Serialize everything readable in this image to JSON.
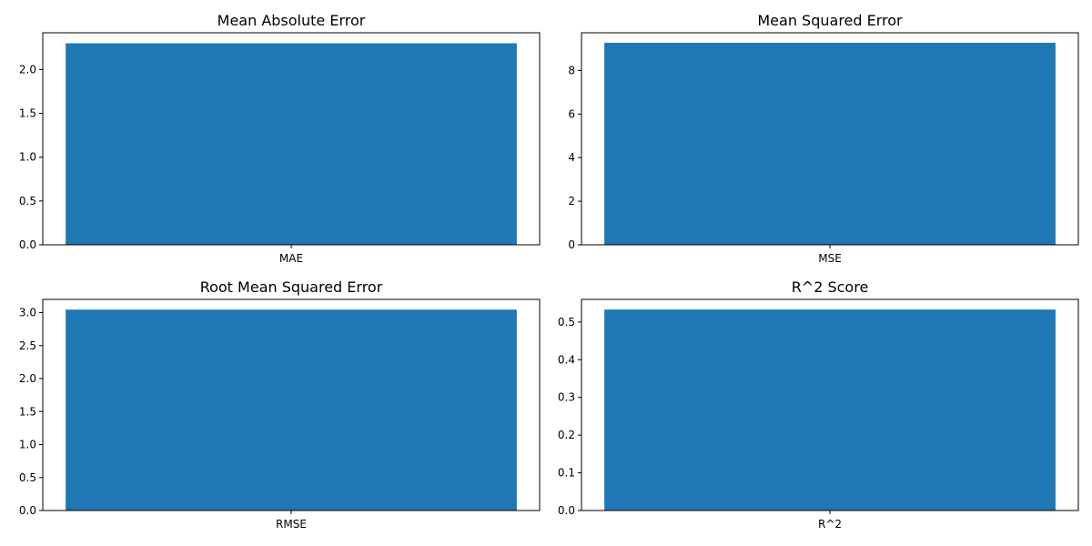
{
  "chart_data": [
    {
      "type": "bar",
      "title": "Mean Absolute Error",
      "categories": [
        "MAE"
      ],
      "values": [
        2.3
      ],
      "ylim": [
        0,
        2.42
      ],
      "yticks": [
        "0.0",
        "0.5",
        "1.0",
        "1.5",
        "2.0"
      ],
      "grid": false,
      "bar_color": "#1f77b4"
    },
    {
      "type": "bar",
      "title": "Mean Squared Error",
      "categories": [
        "MSE"
      ],
      "values": [
        9.27
      ],
      "ylim": [
        0,
        9.73
      ],
      "yticks": [
        "0",
        "2",
        "4",
        "6",
        "8"
      ],
      "grid": false,
      "bar_color": "#1f77b4"
    },
    {
      "type": "bar",
      "title": "Root Mean Squared Error",
      "categories": [
        "RMSE"
      ],
      "values": [
        3.045
      ],
      "ylim": [
        0,
        3.2
      ],
      "yticks": [
        "0.0",
        "0.5",
        "1.0",
        "1.5",
        "2.0",
        "2.5",
        "3.0"
      ],
      "grid": false,
      "bar_color": "#1f77b4"
    },
    {
      "type": "bar",
      "title": "R^2 Score",
      "categories": [
        "R^2"
      ],
      "values": [
        0.533
      ],
      "ylim": [
        0,
        0.56
      ],
      "yticks": [
        "0.0",
        "0.1",
        "0.2",
        "0.3",
        "0.4",
        "0.5"
      ],
      "grid": false,
      "bar_color": "#1f77b4"
    }
  ]
}
